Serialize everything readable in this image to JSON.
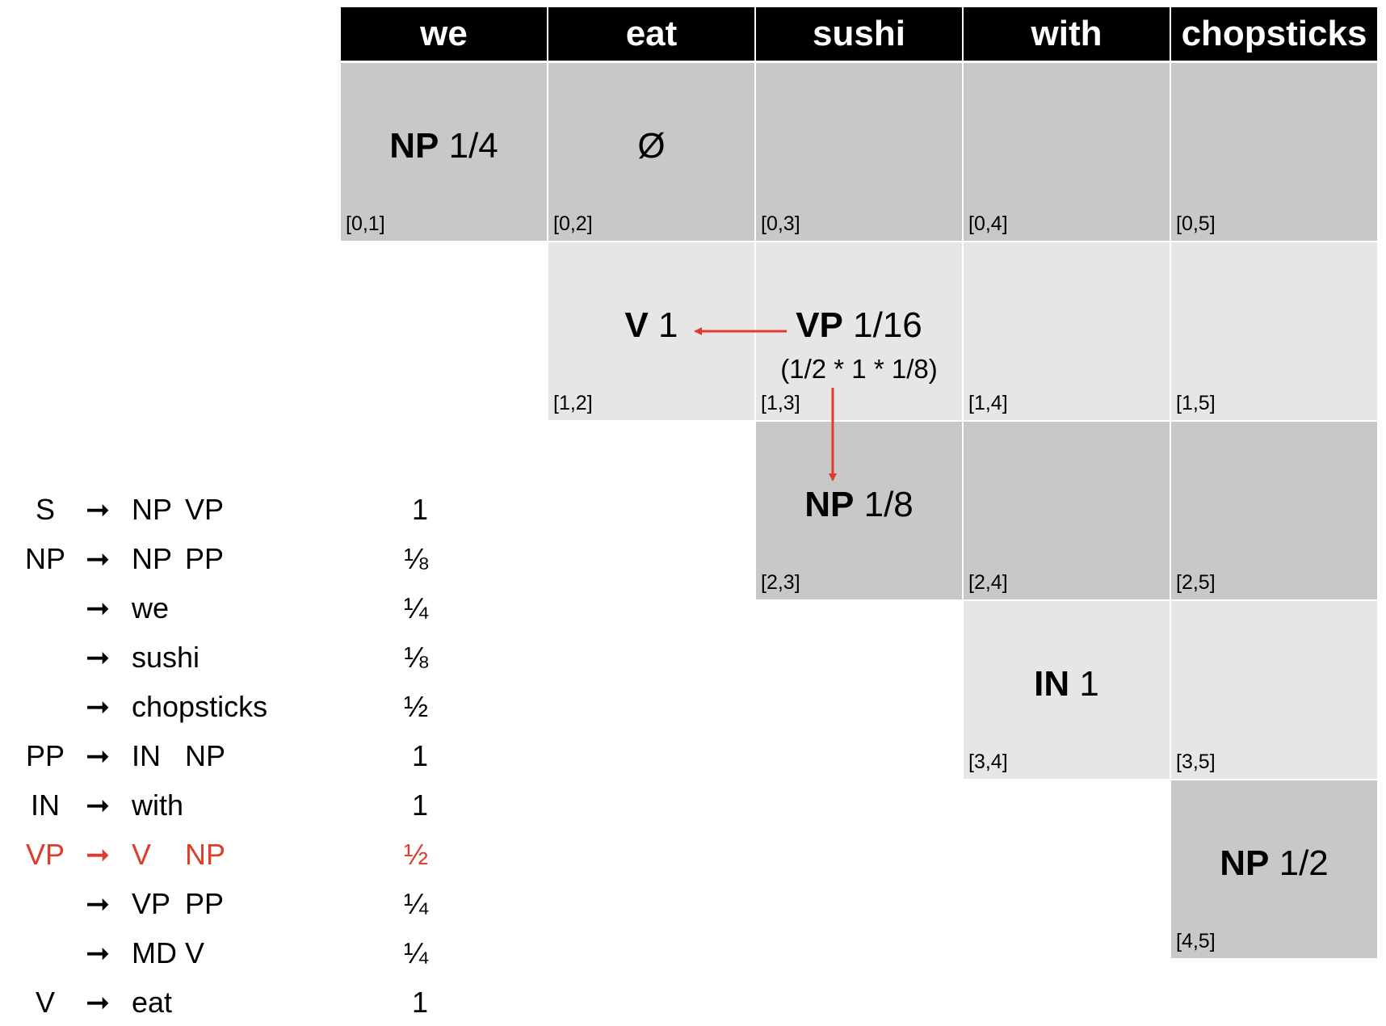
{
  "header": {
    "words": [
      "we",
      "eat",
      "sushi",
      "with",
      "chopsticks"
    ]
  },
  "chart": {
    "cells": [
      {
        "span": "[0,1]",
        "label": "NP",
        "value": "1/4",
        "sub": "",
        "shade": "dark"
      },
      {
        "span": "[0,2]",
        "label": "",
        "value": "Ø",
        "sub": "",
        "shade": "dark"
      },
      {
        "span": "[0,3]",
        "label": "",
        "value": "",
        "sub": "",
        "shade": "dark"
      },
      {
        "span": "[0,4]",
        "label": "",
        "value": "",
        "sub": "",
        "shade": "dark"
      },
      {
        "span": "[0,5]",
        "label": "",
        "value": "",
        "sub": "",
        "shade": "dark"
      },
      {
        "span": "[1,2]",
        "label": "V",
        "value": "1",
        "sub": "",
        "shade": "light"
      },
      {
        "span": "[1,3]",
        "label": "VP",
        "value": "1/16",
        "sub": "(1/2 * 1 * 1/8)",
        "shade": "light"
      },
      {
        "span": "[1,4]",
        "label": "",
        "value": "",
        "sub": "",
        "shade": "light"
      },
      {
        "span": "[1,5]",
        "label": "",
        "value": "",
        "sub": "",
        "shade": "light"
      },
      {
        "span": "[2,3]",
        "label": "NP",
        "value": "1/8",
        "sub": "",
        "shade": "dark"
      },
      {
        "span": "[2,4]",
        "label": "",
        "value": "",
        "sub": "",
        "shade": "dark"
      },
      {
        "span": "[2,5]",
        "label": "",
        "value": "",
        "sub": "",
        "shade": "dark"
      },
      {
        "span": "[3,4]",
        "label": "IN",
        "value": "1",
        "sub": "",
        "shade": "light"
      },
      {
        "span": "[3,5]",
        "label": "",
        "value": "",
        "sub": "",
        "shade": "light"
      },
      {
        "span": "[4,5]",
        "label": "NP",
        "value": "1/2",
        "sub": "",
        "shade": "dark"
      }
    ],
    "backpointers": [
      {
        "from": "[1,3]",
        "to": "[1,2]"
      },
      {
        "from": "[1,3]",
        "to": "[2,3]"
      }
    ]
  },
  "grammar": {
    "arrow": "➞",
    "rules": [
      {
        "lhs": "S",
        "rhs1": "NP",
        "rhs2": "VP",
        "prob": "1",
        "highlight": false
      },
      {
        "lhs": "NP",
        "rhs1": "NP",
        "rhs2": "PP",
        "prob": "⅛",
        "highlight": false
      },
      {
        "lhs": "",
        "rhs1": "we",
        "rhs2": "",
        "prob": "¼",
        "highlight": false
      },
      {
        "lhs": "",
        "rhs1": "sushi",
        "rhs2": "",
        "prob": "⅛",
        "highlight": false
      },
      {
        "lhs": "",
        "rhs1": "chopsticks",
        "rhs2": "",
        "prob": "½",
        "highlight": false
      },
      {
        "lhs": "PP",
        "rhs1": "IN",
        "rhs2": "NP",
        "prob": "1",
        "highlight": false
      },
      {
        "lhs": "IN",
        "rhs1": "with",
        "rhs2": "",
        "prob": "1",
        "highlight": false
      },
      {
        "lhs": "VP",
        "rhs1": "V",
        "rhs2": "NP",
        "prob": "½",
        "highlight": true
      },
      {
        "lhs": "",
        "rhs1": "VP",
        "rhs2": "PP",
        "prob": "¼",
        "highlight": false
      },
      {
        "lhs": "",
        "rhs1": "MD V",
        "rhs2": "",
        "prob": "¼",
        "highlight": false
      },
      {
        "lhs": "V",
        "rhs1": "eat",
        "rhs2": "",
        "prob": "1",
        "highlight": false
      }
    ]
  },
  "colors": {
    "highlight": "#e03c2b",
    "dark_cell": "#c8c8c8",
    "light_cell": "#e6e6e6",
    "header_bg": "#000000"
  }
}
